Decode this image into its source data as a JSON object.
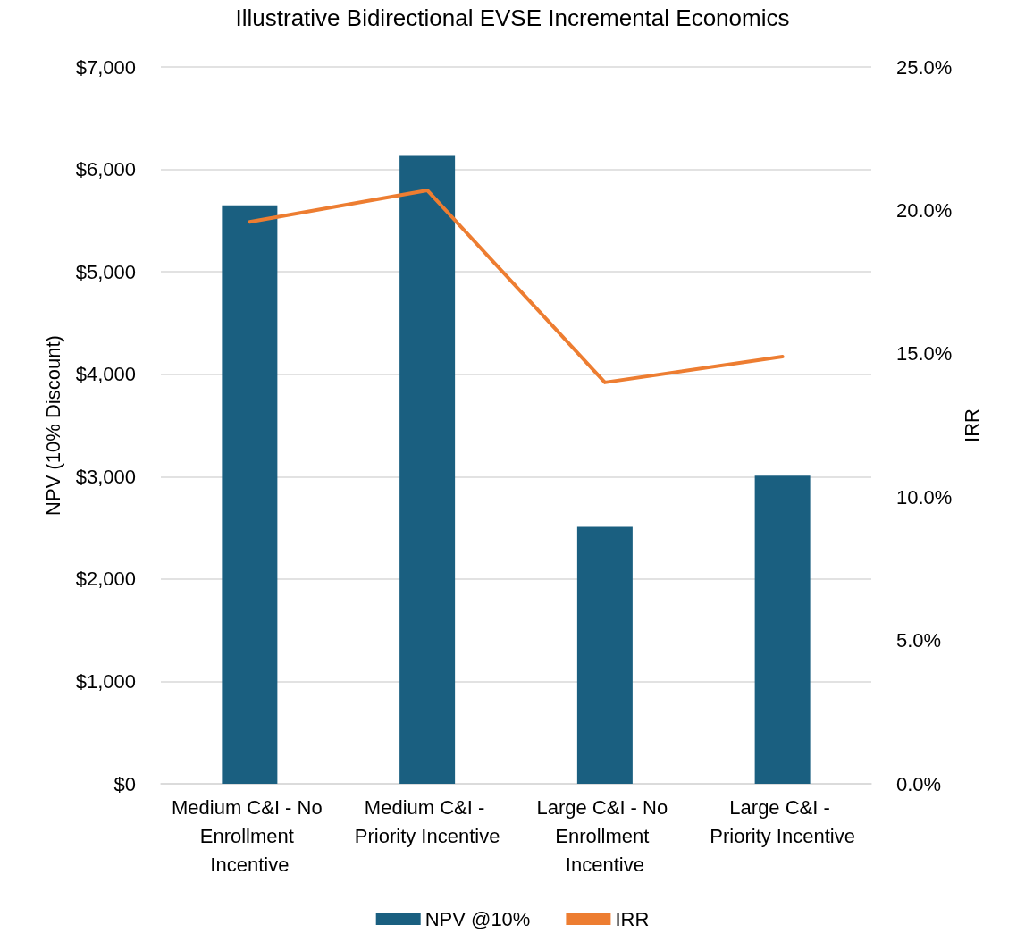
{
  "chart_data": {
    "type": "bar",
    "title": "Illustrative Bidirectional EVSE Incremental Economics",
    "categories": [
      "Medium C&I - No Enrollment Incentive",
      "Medium C&I - Priority Incentive",
      "Large C&I - No Enrollment Incentive",
      "Large C&I - Priority Incentive"
    ],
    "series": [
      {
        "name": "NPV @10%",
        "color": "#1a5f80",
        "values": [
          5650,
          6140,
          2510,
          3010
        ]
      },
      {
        "name": "IRR",
        "type": "line",
        "axis": "y2",
        "color": "#ed7d31",
        "values": [
          19.6,
          20.7,
          14.0,
          14.9
        ]
      }
    ],
    "ylabel": "NPV (10% Discount)",
    "y2label": "IRR",
    "ylim": [
      0,
      7000
    ],
    "yticks": [
      {
        "value": 0,
        "label": "$0"
      },
      {
        "value": 1000,
        "label": "$1,000"
      },
      {
        "value": 2000,
        "label": "$2,000"
      },
      {
        "value": 3000,
        "label": "$3,000"
      },
      {
        "value": 4000,
        "label": "$4,000"
      },
      {
        "value": 5000,
        "label": "$5,000"
      },
      {
        "value": 6000,
        "label": "$6,000"
      },
      {
        "value": 7000,
        "label": "$7,000"
      }
    ],
    "y2lim": [
      0,
      25
    ],
    "y2ticks": [
      {
        "value": 0,
        "label": "0.0%"
      },
      {
        "value": 5,
        "label": "5.0%"
      },
      {
        "value": 10,
        "label": "10.0%"
      },
      {
        "value": 15,
        "label": "15.0%"
      },
      {
        "value": 20,
        "label": "20.0%"
      },
      {
        "value": 25,
        "label": "25.0%"
      }
    ],
    "grid": "y",
    "legend": "bottom",
    "marker": "none",
    "line_style": "solid"
  }
}
